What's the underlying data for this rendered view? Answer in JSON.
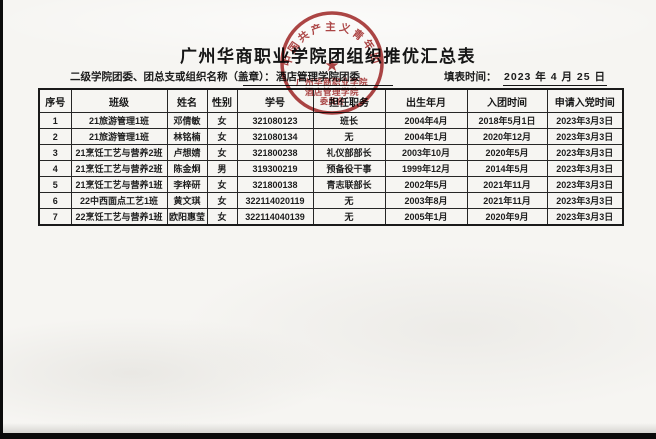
{
  "document": {
    "title": "广州华商职业学院团组织推优汇总表",
    "org_label": "二级学院团委、团总支或组织名称（盖章）：",
    "org_value": "酒店管理学院团委",
    "date_label": "填表时间：",
    "date_value": "2023 年 4 月 25 日"
  },
  "stamp": {
    "top_text": "中国共产主义青年团",
    "star": "★",
    "line1": "广州华商职业学院",
    "line2": "酒店管理学院",
    "line3": "委员会",
    "color": "#a42c2c"
  },
  "table": {
    "headers": [
      "序号",
      "班级",
      "姓名",
      "性别",
      "学号",
      "担任职务",
      "出生年月",
      "入团时间",
      "申请入党时间"
    ],
    "rows": [
      [
        "1",
        "21旅游管理1班",
        "邓倩敏",
        "女",
        "321080123",
        "班长",
        "2004年4月",
        "2018年5月1日",
        "2023年3月3日"
      ],
      [
        "2",
        "21旅游管理1班",
        "林铭楠",
        "女",
        "321080134",
        "无",
        "2004年1月",
        "2020年12月",
        "2023年3月3日"
      ],
      [
        "3",
        "21烹饪工艺与营养2班",
        "卢想婧",
        "女",
        "321800238",
        "礼仪部部长",
        "2003年10月",
        "2020年5月",
        "2023年3月3日"
      ],
      [
        "4",
        "21烹饪工艺与营养2班",
        "陈金炯",
        "男",
        "319300219",
        "预备役干事",
        "1999年12月",
        "2014年5月",
        "2023年3月3日"
      ],
      [
        "5",
        "21烹饪工艺与营养1班",
        "李梓研",
        "女",
        "321800138",
        "青志联部长",
        "2002年5月",
        "2021年11月",
        "2023年3月3日"
      ],
      [
        "6",
        "22中西面点工艺1班",
        "黄文琪",
        "女",
        "322114020119",
        "无",
        "2003年8月",
        "2021年11月",
        "2023年3月3日"
      ],
      [
        "7",
        "22烹饪工艺与营养1班",
        "欧阳惠莹",
        "女",
        "322114040139",
        "无",
        "2005年1月",
        "2020年9月",
        "2023年3月3日"
      ]
    ]
  }
}
